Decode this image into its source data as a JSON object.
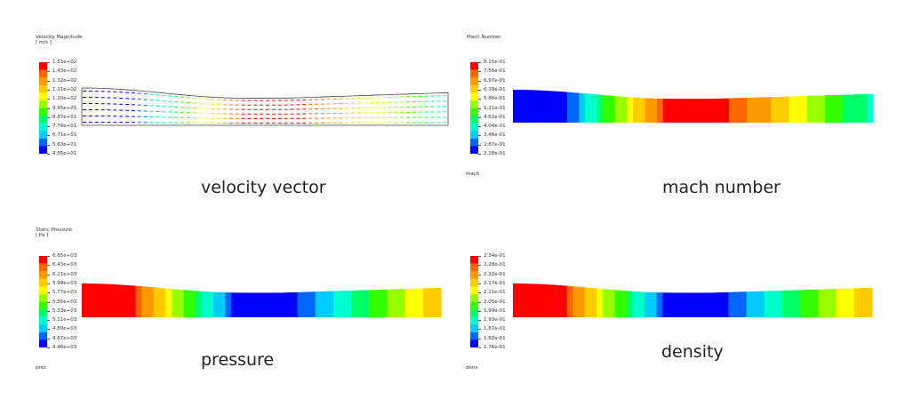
{
  "colormap": [
    "#0000ff",
    "#0066ff",
    "#00ccff",
    "#00ffcc",
    "#00ff66",
    "#33ff00",
    "#99ff00",
    "#ffff00",
    "#ffcc00",
    "#ff9900",
    "#ff6600",
    "#ff0000"
  ],
  "panels": [
    {
      "id": "velocity",
      "title_line1": "Velocity Magnitude",
      "title_line2": "[ m/s ]",
      "ticks": [
        "1.53e+02",
        "1.43e+02",
        "1.32e+02",
        "1.21e+02",
        "1.10e+02",
        "9.95e+01",
        "8.87e+01",
        "7.79e+01",
        "6.71e+01",
        "5.63e+01",
        "4.55e+01"
      ],
      "caption": "velocity vector",
      "footer": ""
    },
    {
      "id": "mach",
      "title_line1": "Mach Number",
      "title_line2": "",
      "ticks": [
        "8.15e-01",
        "7.56e-01",
        "6.97e-01",
        "6.39e-01",
        "5.80e-01",
        "5.21e-01",
        "4.63e-01",
        "4.04e-01",
        "3.46e-01",
        "2.87e-01",
        "2.28e-01"
      ],
      "caption": "mach number",
      "footer": "mach"
    },
    {
      "id": "pressure",
      "title_line1": "Static Pressure",
      "title_line2": "[ Pa ]",
      "ticks": [
        "6.65e+03",
        "6.43e+03",
        "6.21e+03",
        "5.99e+03",
        "5.77e+03",
        "5.55e+03",
        "5.33e+03",
        "5.11e+03",
        "4.89e+03",
        "4.67e+03",
        "4.46e+03"
      ],
      "caption": "pressure",
      "footer": "pres"
    },
    {
      "id": "density",
      "title_line1": "",
      "title_line2": "",
      "ticks": [
        "2.34e-01",
        "2.28e-01",
        "2.22e-01",
        "2.17e-01",
        "2.11e-01",
        "2.05e-01",
        "1.99e-01",
        "1.93e-01",
        "1.87e-01",
        "1.82e-01",
        "1.76e-01"
      ],
      "caption": "density",
      "footer": "dens"
    }
  ]
}
